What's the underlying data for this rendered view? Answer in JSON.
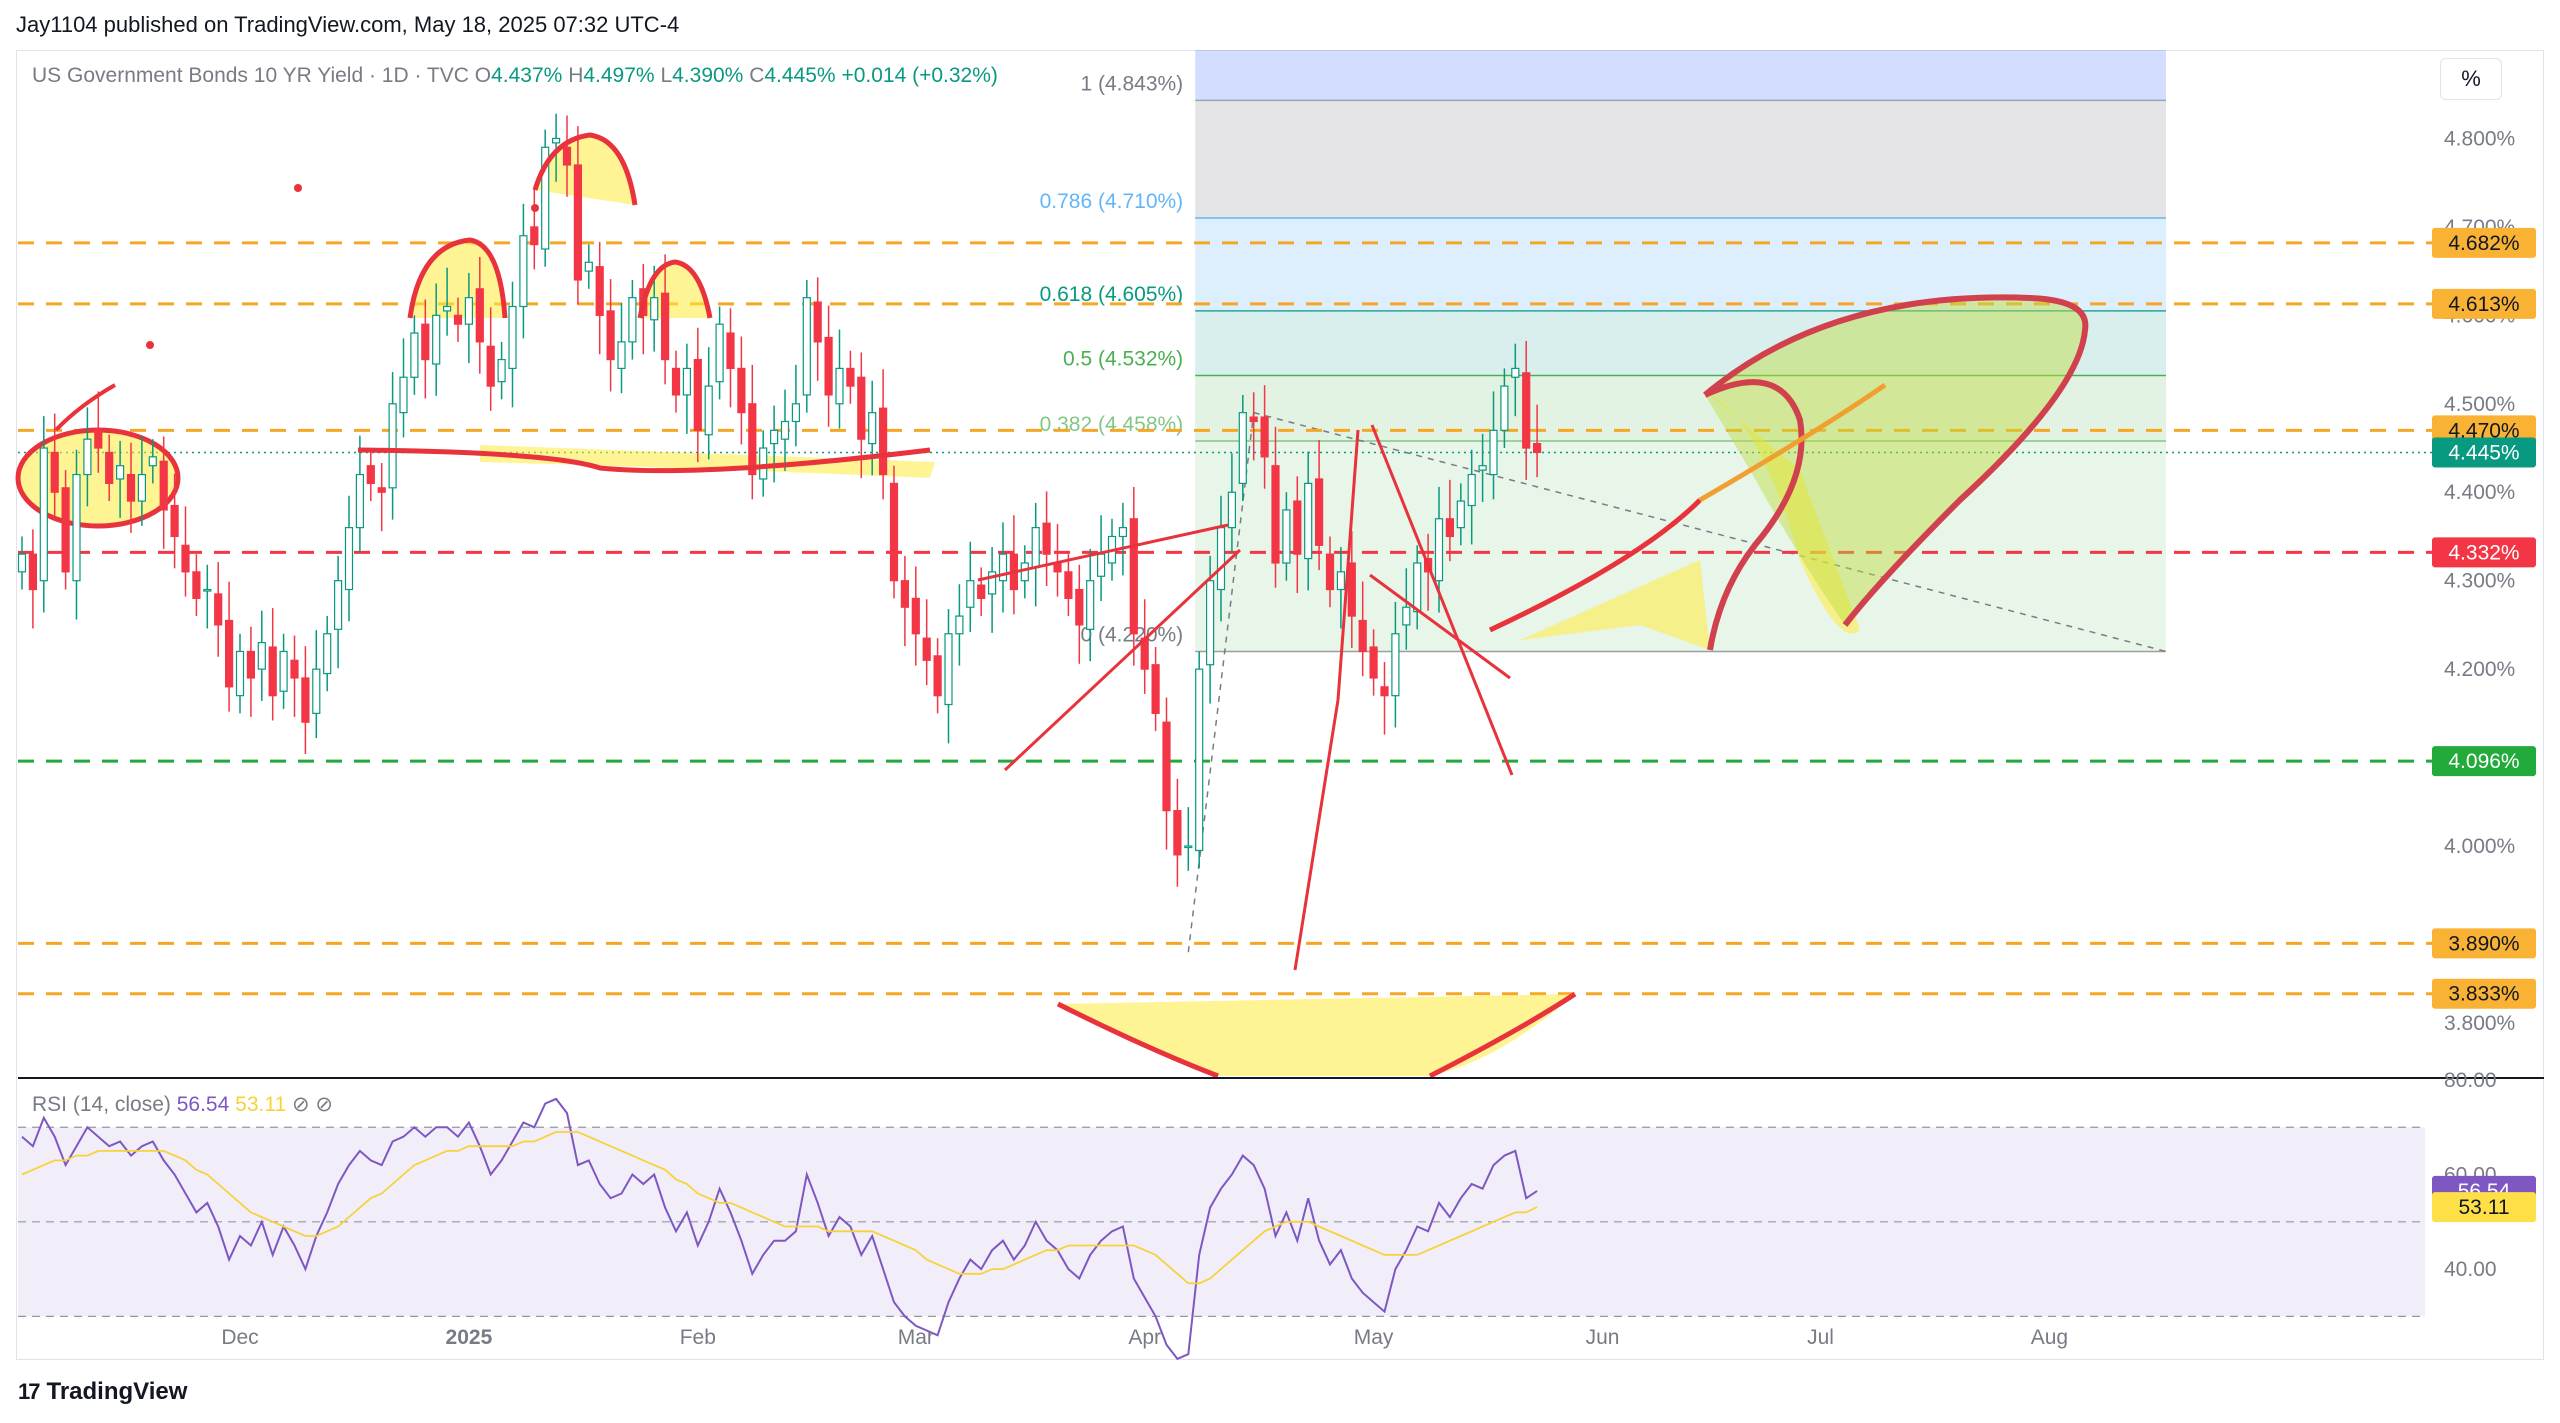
{
  "header": {
    "published_line": "Jay1104 published on TradingView.com, May 18, 2025 07:32 UTC-4"
  },
  "legend": {
    "symbol": "US Government Bonds 10 YR Yield · 1D · TVC",
    "o_label": "O",
    "o_value": "4.437%",
    "h_label": "H",
    "h_value": "4.497%",
    "l_label": "L",
    "l_value": "4.390%",
    "c_label": "C",
    "c_value": "4.445%",
    "change": "+0.014 (+0.32%)"
  },
  "rsi_legend": {
    "label": "RSI (14, close)",
    "rsi_value": "56.54",
    "ma_value": "53.11",
    "icons": "⊘ ⊘"
  },
  "unit_button": "%",
  "footer": {
    "brand": "TradingView",
    "logo_mark": "17"
  },
  "colors": {
    "up": "#089981",
    "down": "#f23645",
    "fib_orange": "#f5a623",
    "rsi_line": "#7e57c2",
    "rsi_ma": "#f7d23b",
    "drawing_red": "#e8323c",
    "highlight_yellow": "#fff176",
    "green_level": "#22ab3a"
  },
  "chart_data": [
    {
      "type": "candlestick",
      "title": "US Government Bonds 10 YR Yield · 1D · TVC",
      "ylim": [
        3.74,
        4.9
      ],
      "y_ticks": [
        "4.800%",
        "4.700%",
        "4.600%",
        "4.500%",
        "4.400%",
        "4.300%",
        "4.200%",
        "4.000%",
        "3.800%"
      ],
      "y_tick_values": [
        4.8,
        4.7,
        4.6,
        4.5,
        4.4,
        4.3,
        4.2,
        4.0,
        3.8
      ],
      "x_tick_labels": [
        "Dec",
        "2025",
        "Feb",
        "Mar",
        "Apr",
        "May",
        "Jun",
        "Jul",
        "Aug"
      ],
      "x_tick_index": [
        20,
        41,
        62,
        82,
        103,
        124,
        145,
        165,
        186
      ],
      "last_price": 4.445,
      "series_close": [
        4.33,
        4.29,
        4.45,
        4.4,
        4.31,
        4.42,
        4.46,
        4.45,
        4.41,
        4.43,
        4.39,
        4.42,
        4.44,
        4.38,
        4.35,
        4.31,
        4.28,
        4.29,
        4.25,
        4.18,
        4.22,
        4.19,
        4.23,
        4.17,
        4.22,
        4.19,
        4.14,
        4.2,
        4.24,
        4.3,
        4.36,
        4.42,
        4.41,
        4.4,
        4.5,
        4.53,
        4.58,
        4.55,
        4.6,
        4.61,
        4.59,
        4.62,
        4.57,
        4.52,
        4.55,
        4.61,
        4.69,
        4.68,
        4.79,
        4.8,
        4.77,
        4.64,
        4.66,
        4.6,
        4.55,
        4.57,
        4.62,
        4.6,
        4.62,
        4.55,
        4.51,
        4.54,
        4.47,
        4.52,
        4.59,
        4.54,
        4.49,
        4.42,
        4.45,
        4.47,
        4.48,
        4.5,
        4.62,
        4.57,
        4.51,
        4.54,
        4.52,
        4.46,
        4.49,
        4.42,
        4.3,
        4.27,
        4.24,
        4.21,
        4.17,
        4.24,
        4.26,
        4.3,
        4.28,
        4.31,
        4.33,
        4.29,
        4.32,
        4.36,
        4.33,
        4.31,
        4.28,
        4.25,
        4.3,
        4.33,
        4.35,
        4.36,
        4.24,
        4.2,
        4.15,
        4.04,
        3.99,
        4.0,
        4.2,
        4.3,
        4.36,
        4.4,
        4.49,
        4.48,
        4.44,
        4.32,
        4.38,
        4.33,
        4.41,
        4.34,
        4.29,
        4.31,
        4.26,
        4.22,
        4.19,
        4.17,
        4.24,
        4.27,
        4.32,
        4.31,
        4.37,
        4.35,
        4.39,
        4.42,
        4.43,
        4.47,
        4.52,
        4.54,
        4.45,
        4.445
      ],
      "fibonacci": {
        "levels": [
          {
            "label": "1 (4.843%)",
            "value": 4.843
          },
          {
            "label": "0.786 (4.710%)",
            "value": 4.71
          },
          {
            "label": "0.618 (4.605%)",
            "value": 4.605
          },
          {
            "label": "0.5 (4.532%)",
            "value": 4.532
          },
          {
            "label": "0.382 (4.458%)",
            "value": 4.458
          },
          {
            "label": "0 (4.220%)",
            "value": 4.22
          }
        ]
      },
      "horizontal_levels": [
        {
          "label": "4.682%",
          "value": 4.682,
          "color": "#f5a623",
          "style": "dashed"
        },
        {
          "label": "4.613%",
          "value": 4.613,
          "color": "#f5a623",
          "style": "dashed"
        },
        {
          "label": "4.470%",
          "value": 4.47,
          "color": "#f5a623",
          "style": "dashed"
        },
        {
          "label": "4.332%",
          "value": 4.332,
          "color": "#f23645",
          "style": "dashed"
        },
        {
          "label": "4.096%",
          "value": 4.096,
          "color": "#22ab3a",
          "style": "dashed"
        },
        {
          "label": "3.890%",
          "value": 3.89,
          "color": "#f5a623",
          "style": "dashed"
        },
        {
          "label": "3.833%",
          "value": 3.833,
          "color": "#f5a623",
          "style": "dashed"
        }
      ],
      "price_badge": {
        "label": "4.445%",
        "value": 4.445
      }
    },
    {
      "type": "line",
      "title": "RSI (14, close)",
      "ylim": [
        25,
        80
      ],
      "y_ticks": [
        "80.00",
        "60.00",
        "40.00"
      ],
      "y_tick_values": [
        80,
        60,
        40
      ],
      "band": [
        30,
        70
      ],
      "midline": 50,
      "rsi_last": 56.54,
      "ma_last": 53.11,
      "series": [
        {
          "values": [
            68,
            66,
            72,
            68,
            62,
            66,
            70,
            68,
            66,
            67,
            64,
            66,
            67,
            63,
            60,
            56,
            52,
            54,
            49,
            42,
            47,
            45,
            50,
            43,
            49,
            45,
            40,
            47,
            52,
            58,
            62,
            65,
            63,
            62,
            67,
            68,
            70,
            68,
            70,
            70,
            68,
            71,
            66,
            60,
            63,
            67,
            71,
            70,
            75,
            76,
            73,
            62,
            63,
            58,
            55,
            56,
            60,
            58,
            60,
            53,
            48,
            52,
            45,
            50,
            57,
            52,
            46,
            39,
            43,
            46,
            46,
            48,
            60,
            54,
            47,
            51,
            49,
            43,
            47,
            40,
            33,
            30,
            28,
            27,
            26,
            33,
            38,
            42,
            40,
            44,
            46,
            42,
            45,
            50,
            46,
            44,
            40,
            38,
            43,
            46,
            48,
            49,
            38,
            34,
            30,
            24,
            21,
            22,
            43,
            53,
            57,
            60,
            64,
            62,
            57,
            47,
            52,
            46,
            55,
            46,
            41,
            44,
            38,
            35,
            33,
            31,
            40,
            44,
            49,
            48,
            54,
            51,
            55,
            58,
            57,
            62,
            64,
            65,
            55,
            56.54
          ]
        },
        {
          "values": [
            60,
            61,
            62,
            63,
            63,
            64,
            64,
            65,
            65,
            65,
            65,
            65,
            65,
            65,
            64,
            63,
            61,
            60,
            58,
            56,
            54,
            52,
            51,
            50,
            49,
            48,
            47,
            47,
            48,
            49,
            51,
            53,
            55,
            56,
            58,
            60,
            62,
            63,
            64,
            65,
            65,
            66,
            66,
            66,
            66,
            66,
            67,
            67,
            68,
            69,
            69,
            69,
            68,
            67,
            66,
            65,
            64,
            63,
            62,
            61,
            59,
            58,
            56,
            55,
            54,
            54,
            53,
            52,
            51,
            50,
            49,
            49,
            49,
            49,
            48,
            48,
            48,
            48,
            48,
            47,
            46,
            45,
            44,
            42,
            41,
            40,
            39,
            39,
            39,
            40,
            40,
            41,
            42,
            43,
            44,
            44,
            45,
            45,
            45,
            45,
            45,
            45,
            45,
            44,
            43,
            41,
            39,
            37,
            37,
            38,
            40,
            42,
            44,
            46,
            48,
            49,
            50,
            50,
            50,
            49,
            48,
            47,
            46,
            45,
            44,
            43,
            43,
            43,
            43,
            44,
            45,
            46,
            47,
            48,
            49,
            50,
            51,
            52,
            52,
            53.11
          ]
        }
      ]
    }
  ]
}
